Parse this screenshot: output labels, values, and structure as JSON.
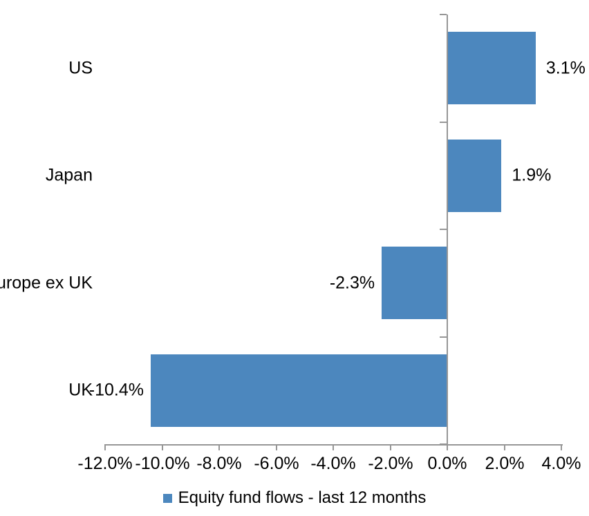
{
  "chart_data": {
    "type": "bar",
    "orientation": "horizontal",
    "title": "",
    "xlabel": "",
    "ylabel": "",
    "categories": [
      "US",
      "Japan",
      "Europe ex UK",
      "UK"
    ],
    "values": [
      3.1,
      1.9,
      -2.3,
      -10.4
    ],
    "data_labels": [
      "3.1%",
      "1.9%",
      "-2.3%",
      "-10.4%"
    ],
    "series": [
      {
        "name": "Equity fund flows - last 12 months",
        "values": [
          3.1,
          1.9,
          -2.3,
          -10.4
        ]
      }
    ],
    "legend": {
      "label": "Equity fund flows - last 12 months",
      "position": "bottom"
    },
    "xlim": [
      -12,
      4
    ],
    "x_tick_values": [
      -12,
      -10,
      -8,
      -6,
      -4,
      -2,
      0,
      2,
      4
    ],
    "x_tick_labels": [
      "-12.0%",
      "-10.0%",
      "-8.0%",
      "-6.0%",
      "-4.0%",
      "-2.0%",
      "0.0%",
      "2.0%",
      "4.0%"
    ],
    "grid": false,
    "colors": {
      "bar": "#4C87BE",
      "axis": "#969696",
      "text": "#000000",
      "background": "#FFFFFF"
    }
  }
}
